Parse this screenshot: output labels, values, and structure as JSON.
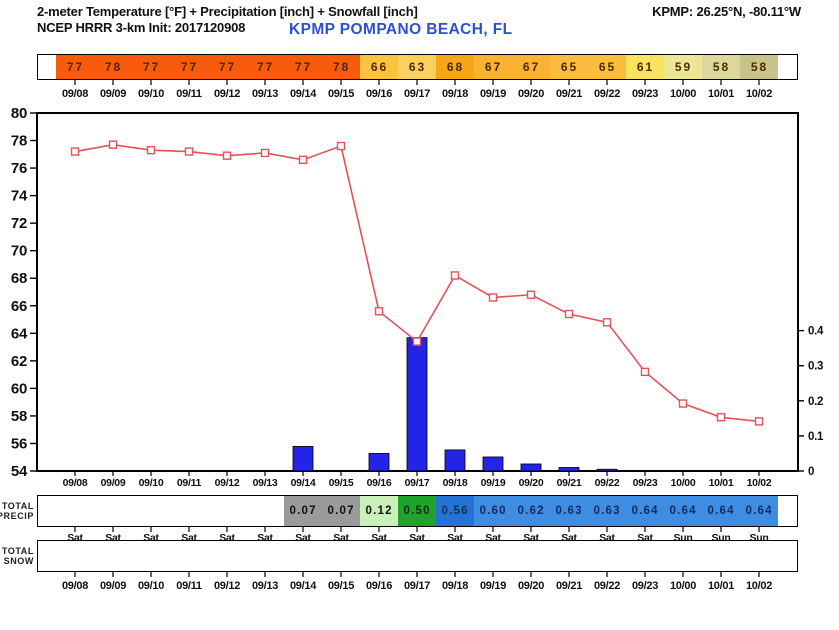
{
  "header": {
    "title": "2-meter Temperature [°F] + Precipitation [inch] + Snowfall [inch]",
    "model_init": "NCEP HRRR 3-km Init: 2017120908",
    "station": "KPMP POMPANO BEACH, FL",
    "coordinates": "KPMP: 26.25°N, -80.11°W"
  },
  "colors": {
    "temperature_line": "#e25257",
    "marker_fill": "#ffffff",
    "precip_bar": "#2424e8",
    "bar_outline": "#000000",
    "frame": "#000000",
    "station_text": "#2b4fd7",
    "blue_cell_text": "#0d2d5e",
    "dark_cell_text": "#111111",
    "strip_text": "#4a2a00"
  },
  "chart_data": {
    "type": "line",
    "title": "2-meter Temperature [°F] + Precipitation [inch] + Snowfall [inch]",
    "x": [
      "09/08",
      "09/09",
      "09/10",
      "09/11",
      "09/12",
      "09/13",
      "09/14",
      "09/15",
      "09/16",
      "09/17",
      "09/18",
      "09/19",
      "09/20",
      "09/21",
      "09/22",
      "09/23",
      "10/00",
      "10/01",
      "10/02"
    ],
    "series": [
      {
        "name": "2-meter Temperature [°F]",
        "type": "line",
        "axis": "left",
        "values": [
          77.2,
          77.7,
          77.3,
          77.2,
          76.9,
          77.1,
          76.6,
          77.6,
          65.6,
          63.4,
          68.2,
          66.6,
          66.8,
          65.4,
          64.8,
          61.2,
          58.9,
          57.9,
          57.6
        ]
      },
      {
        "name": "Precipitation [inch]",
        "type": "bar",
        "axis": "right",
        "values": [
          0,
          0,
          0,
          0,
          0,
          0,
          0.07,
          0,
          0.05,
          0.38,
          0.06,
          0.04,
          0.02,
          0.01,
          0.005,
          0,
          0,
          0,
          0
        ]
      }
    ],
    "left_axis": {
      "label": "Temperature [°F]",
      "min": 54,
      "max": 80,
      "tick_step": 2
    },
    "right_axis": {
      "label": "Precipitation [inch]",
      "min": 0,
      "max": 1.02,
      "ticks": [
        0,
        0.1,
        0.2,
        0.3,
        0.4
      ],
      "tick_labels": [
        "0",
        "0.1",
        "0.2",
        "0.3",
        "0.4"
      ]
    },
    "grid": false,
    "legend_position": "none"
  },
  "temp_strip": {
    "values": [
      "77",
      "78",
      "77",
      "77",
      "77",
      "77",
      "77",
      "78",
      "66",
      "63",
      "68",
      "67",
      "67",
      "65",
      "65",
      "61",
      "59",
      "58",
      "58"
    ],
    "colors": [
      "#f85c0a",
      "#f85c0a",
      "#f85c0a",
      "#f85c0a",
      "#f85c0a",
      "#f85c0a",
      "#f85c0a",
      "#f85c0a",
      "#fcc240",
      "#fdd05e",
      "#f9a51a",
      "#fbb232",
      "#fbb232",
      "#fcbc3e",
      "#fcbc3e",
      "#fae35e",
      "#ebe795",
      "#dcd89b",
      "#c8c28b"
    ]
  },
  "precip_row": {
    "label_line1": "TOTAL",
    "label_line2": "PRECIP",
    "values": [
      "",
      "",
      "",
      "",
      "",
      "",
      "0.07",
      "0.07",
      "0.12",
      "0.50",
      "0.56",
      "0.60",
      "0.62",
      "0.63",
      "0.63",
      "0.64",
      "0.64",
      "0.64",
      "0.64"
    ],
    "colors": [
      "",
      "",
      "",
      "",
      "",
      "",
      "#9b9b9b",
      "#9b9b9b",
      "#c9f0b8",
      "#1fa32c",
      "#2673d6",
      "#3f8de2",
      "#3f8de2",
      "#3f8de2",
      "#3f8de2",
      "#3f8de2",
      "#3f8de2",
      "#3f8de2",
      "#3f8de2"
    ],
    "text_colors": [
      "",
      "",
      "",
      "",
      "",
      "",
      "#111111",
      "#111111",
      "#111111",
      "#063206",
      "#0d2d5e",
      "#0d2d5e",
      "#0d2d5e",
      "#0d2d5e",
      "#0d2d5e",
      "#0d2d5e",
      "#0d2d5e",
      "#0d2d5e",
      "#0d2d5e"
    ]
  },
  "day_row": {
    "values": [
      "Sat",
      "Sat",
      "Sat",
      "Sat",
      "Sat",
      "Sat",
      "Sat",
      "Sat",
      "Sat",
      "Sat",
      "Sat",
      "Sat",
      "Sat",
      "Sat",
      "Sat",
      "Sat",
      "Sun",
      "Sun",
      "Sun"
    ]
  },
  "snow_row": {
    "label_line1": "TOTAL",
    "label_line2": "SNOW",
    "values": []
  }
}
